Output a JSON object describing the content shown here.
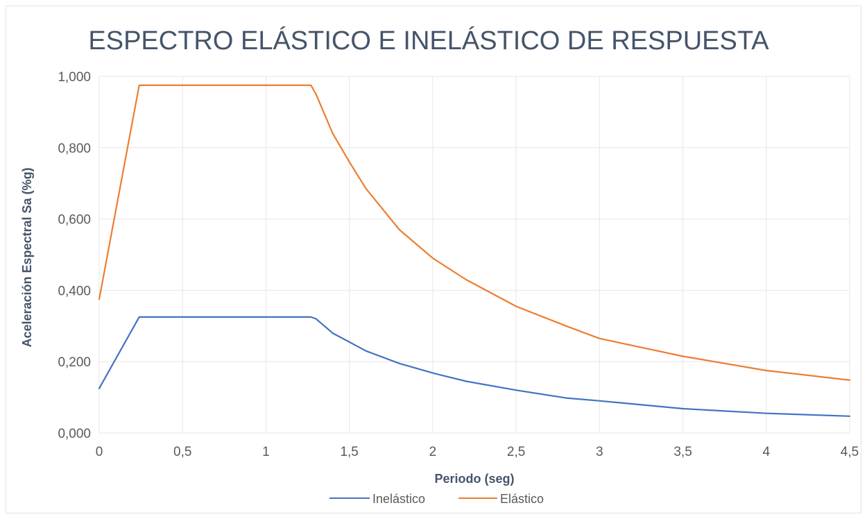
{
  "chart_data": {
    "type": "line",
    "title": "ESPECTRO ELÁSTICO E INELÁSTICO DE RESPUESTA",
    "xlabel": "Periodo (seg)",
    "ylabel": "Aceleración Espectral Sa (%g)",
    "xlim": [
      0,
      4.5
    ],
    "ylim": [
      0,
      1.0
    ],
    "x_ticks": [
      "0",
      "0,5",
      "1",
      "1,5",
      "2",
      "2,5",
      "3",
      "3,5",
      "4",
      "4,5"
    ],
    "x_tick_values": [
      0,
      0.5,
      1,
      1.5,
      2,
      2.5,
      3,
      3.5,
      4,
      4.5
    ],
    "y_ticks": [
      "0,000",
      "0,200",
      "0,400",
      "0,600",
      "0,800",
      "1,000"
    ],
    "y_tick_values": [
      0,
      0.2,
      0.4,
      0.6,
      0.8,
      1.0
    ],
    "grid": true,
    "legend_position": "bottom",
    "series": [
      {
        "name": "Inelástico",
        "color": "#4472c4",
        "x": [
          0,
          0.24,
          1.27,
          1.3,
          1.4,
          1.5,
          1.6,
          1.8,
          2.0,
          2.2,
          2.5,
          2.8,
          3.0,
          3.5,
          4.0,
          4.5
        ],
        "y": [
          0.125,
          0.325,
          0.325,
          0.32,
          0.28,
          0.255,
          0.23,
          0.195,
          0.168,
          0.145,
          0.12,
          0.098,
          0.09,
          0.068,
          0.055,
          0.047
        ]
      },
      {
        "name": "Elástico",
        "color": "#ed7d31",
        "x": [
          0,
          0.24,
          1.27,
          1.3,
          1.4,
          1.5,
          1.6,
          1.8,
          2.0,
          2.2,
          2.5,
          2.8,
          3.0,
          3.5,
          4.0,
          4.5
        ],
        "y": [
          0.375,
          0.975,
          0.975,
          0.95,
          0.84,
          0.76,
          0.685,
          0.57,
          0.49,
          0.43,
          0.355,
          0.3,
          0.265,
          0.215,
          0.175,
          0.148
        ]
      }
    ]
  }
}
